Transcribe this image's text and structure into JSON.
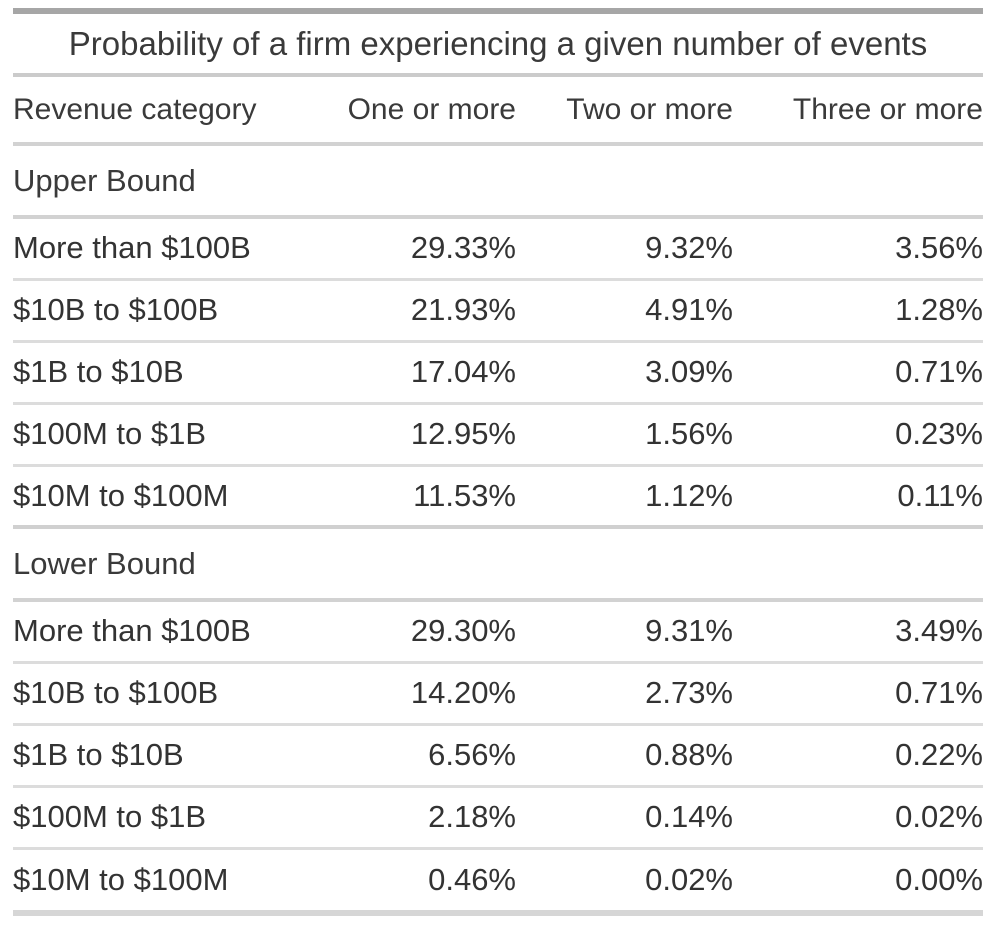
{
  "chart_data": {
    "type": "table",
    "title": "Probability of a firm experiencing a given number of events",
    "columns": [
      "Revenue category",
      "One or more",
      "Two or more",
      "Three or more"
    ],
    "sections": [
      {
        "label": "Upper Bound",
        "rows": [
          {
            "category": "More than $100B",
            "one_or_more": "29.33%",
            "two_or_more": "9.32%",
            "three_or_more": "3.56%"
          },
          {
            "category": "$10B to $100B",
            "one_or_more": "21.93%",
            "two_or_more": "4.91%",
            "three_or_more": "1.28%"
          },
          {
            "category": "$1B to $10B",
            "one_or_more": "17.04%",
            "two_or_more": "3.09%",
            "three_or_more": "0.71%"
          },
          {
            "category": "$100M to $1B",
            "one_or_more": "12.95%",
            "two_or_more": "1.56%",
            "three_or_more": "0.23%"
          },
          {
            "category": "$10M to $100M",
            "one_or_more": "11.53%",
            "two_or_more": "1.12%",
            "three_or_more": "0.11%"
          }
        ]
      },
      {
        "label": "Lower Bound",
        "rows": [
          {
            "category": "More than $100B",
            "one_or_more": "29.30%",
            "two_or_more": "9.31%",
            "three_or_more": "3.49%"
          },
          {
            "category": "$10B to $100B",
            "one_or_more": "14.20%",
            "two_or_more": "2.73%",
            "three_or_more": "0.71%"
          },
          {
            "category": "$1B to $10B",
            "one_or_more": "6.56%",
            "two_or_more": "0.88%",
            "three_or_more": "0.22%"
          },
          {
            "category": "$100M to $1B",
            "one_or_more": "2.18%",
            "two_or_more": "0.14%",
            "three_or_more": "0.02%"
          },
          {
            "category": "$10M to $100M",
            "one_or_more": "0.46%",
            "two_or_more": "0.02%",
            "three_or_more": "0.00%"
          }
        ]
      }
    ],
    "layout_hints": {
      "value_alignment": "right",
      "category_alignment": "left",
      "grid": "horizontal-rules-only"
    }
  },
  "colors": {
    "text": "#333333",
    "top_bar": "#a6a6a6",
    "bottom_bar": "#d6d6d6",
    "section_rule": "#d2d2d2",
    "row_rule": "#dcdcdc",
    "background": "#ffffff"
  }
}
